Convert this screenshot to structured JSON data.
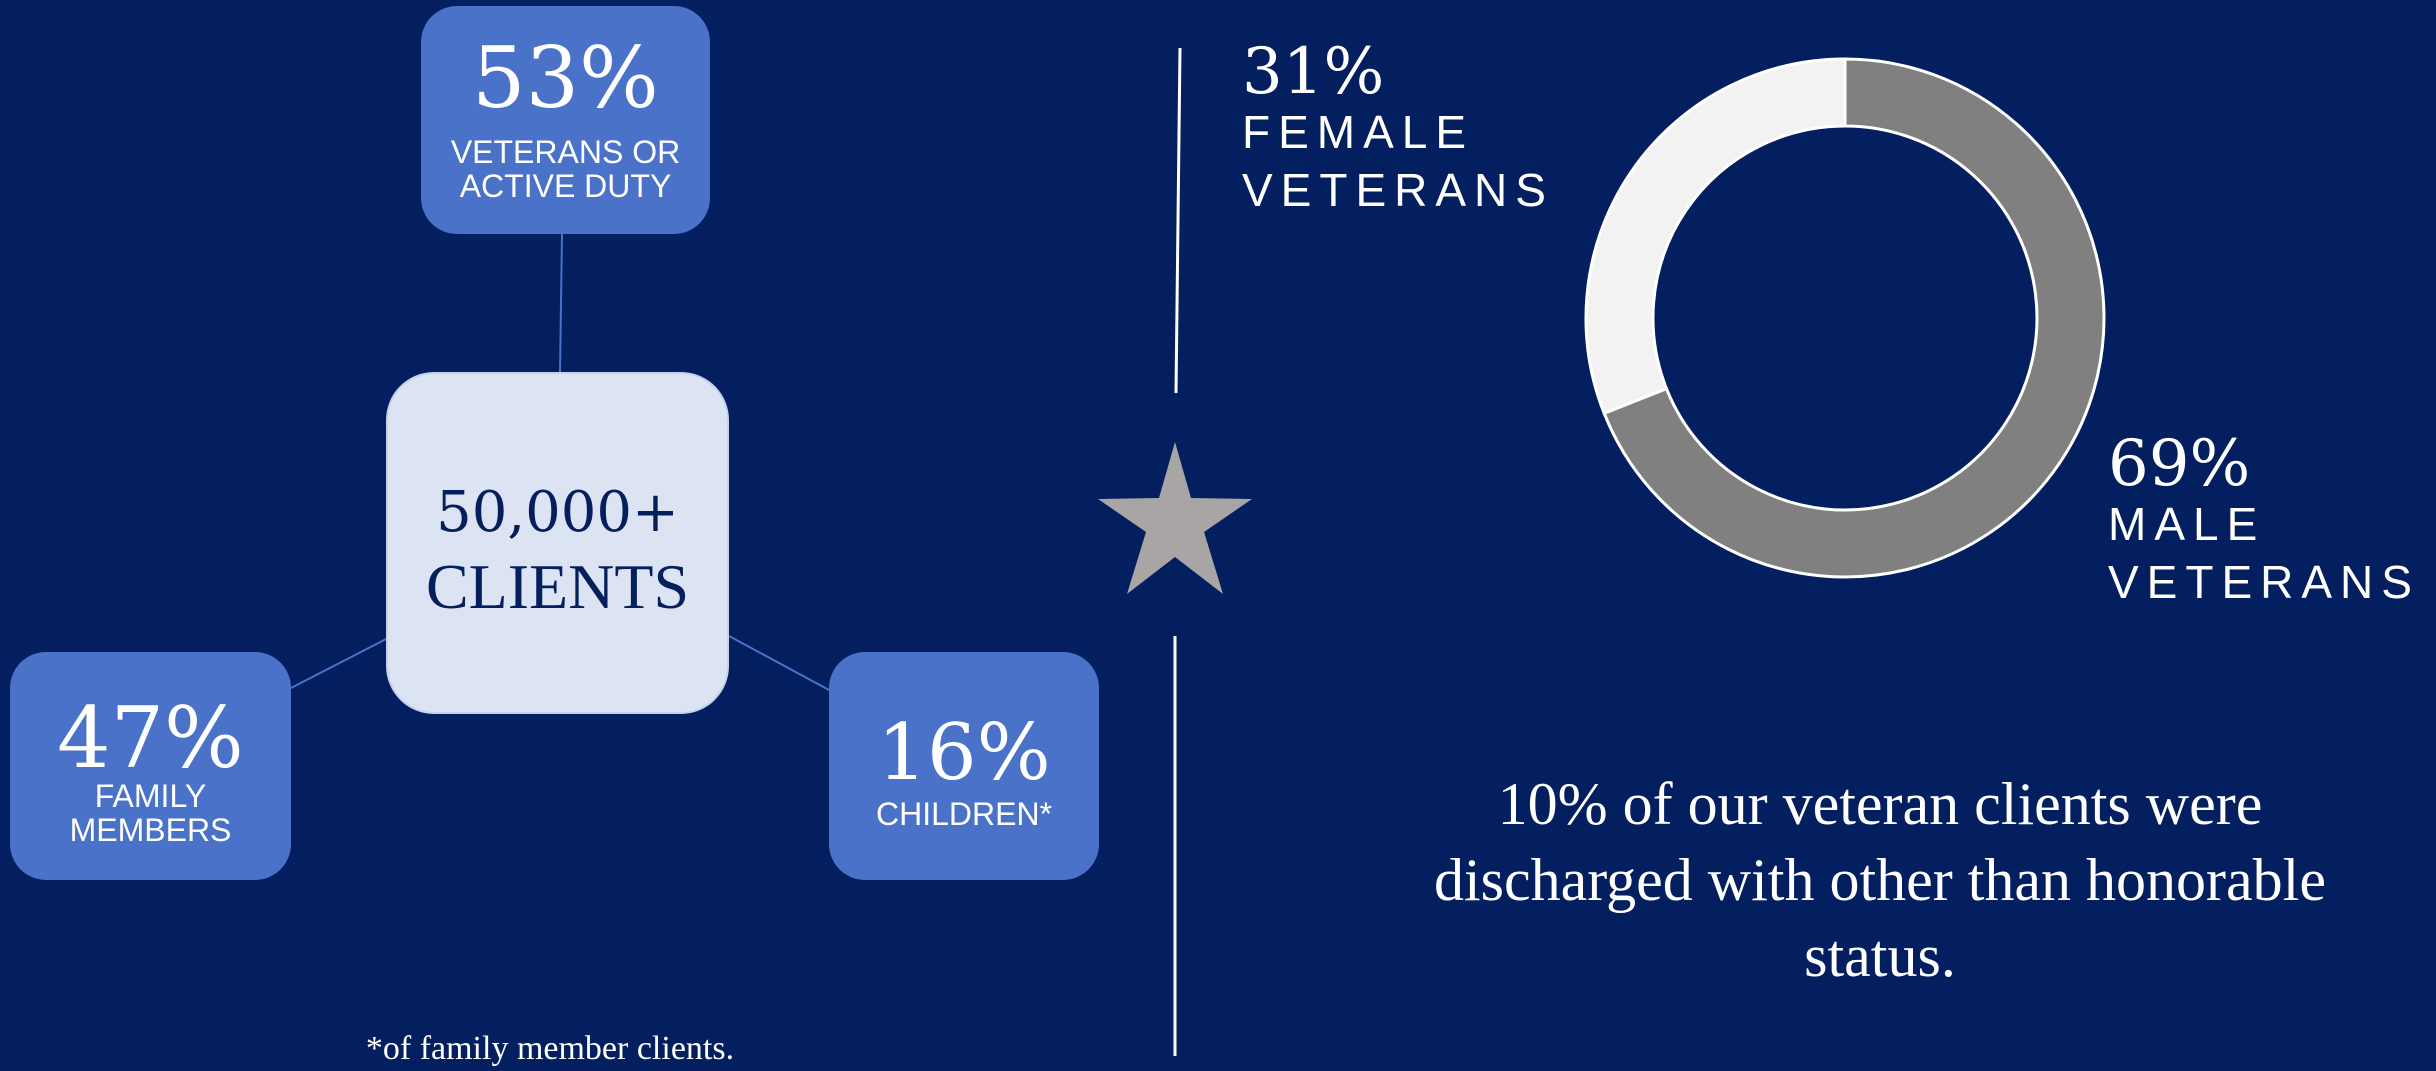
{
  "clients": {
    "count": "50,000+",
    "label": "CLIENTS",
    "breakdown": [
      {
        "id": "veterans",
        "percent": "53%",
        "label": "VETERANS OR\nACTIVE DUTY"
      },
      {
        "id": "family",
        "percent": "47%",
        "label": "FAMILY\nMEMBERS"
      },
      {
        "id": "children",
        "percent": "16%",
        "label": "CHILDREN*"
      }
    ],
    "footnote": "*of family member clients."
  },
  "veterans_gender": {
    "female": {
      "percent": "31%",
      "label": "FEMALE\nVETERANS"
    },
    "male": {
      "percent": "69%",
      "label": "MALE\nVETERANS"
    }
  },
  "discharge_note": "10% of our veteran clients were discharged with other than honorable status.",
  "colors": {
    "background": "#031f5f",
    "box": "#4a72c8",
    "center_box": "#dce4f4",
    "female_slice": "#f2f2f2",
    "male_slice": "#808080",
    "star": "#aaa5a5"
  },
  "chart_data": {
    "type": "pie",
    "donut": true,
    "categories": [
      "FEMALE VETERANS",
      "MALE VETERANS"
    ],
    "values": [
      31,
      69
    ]
  }
}
